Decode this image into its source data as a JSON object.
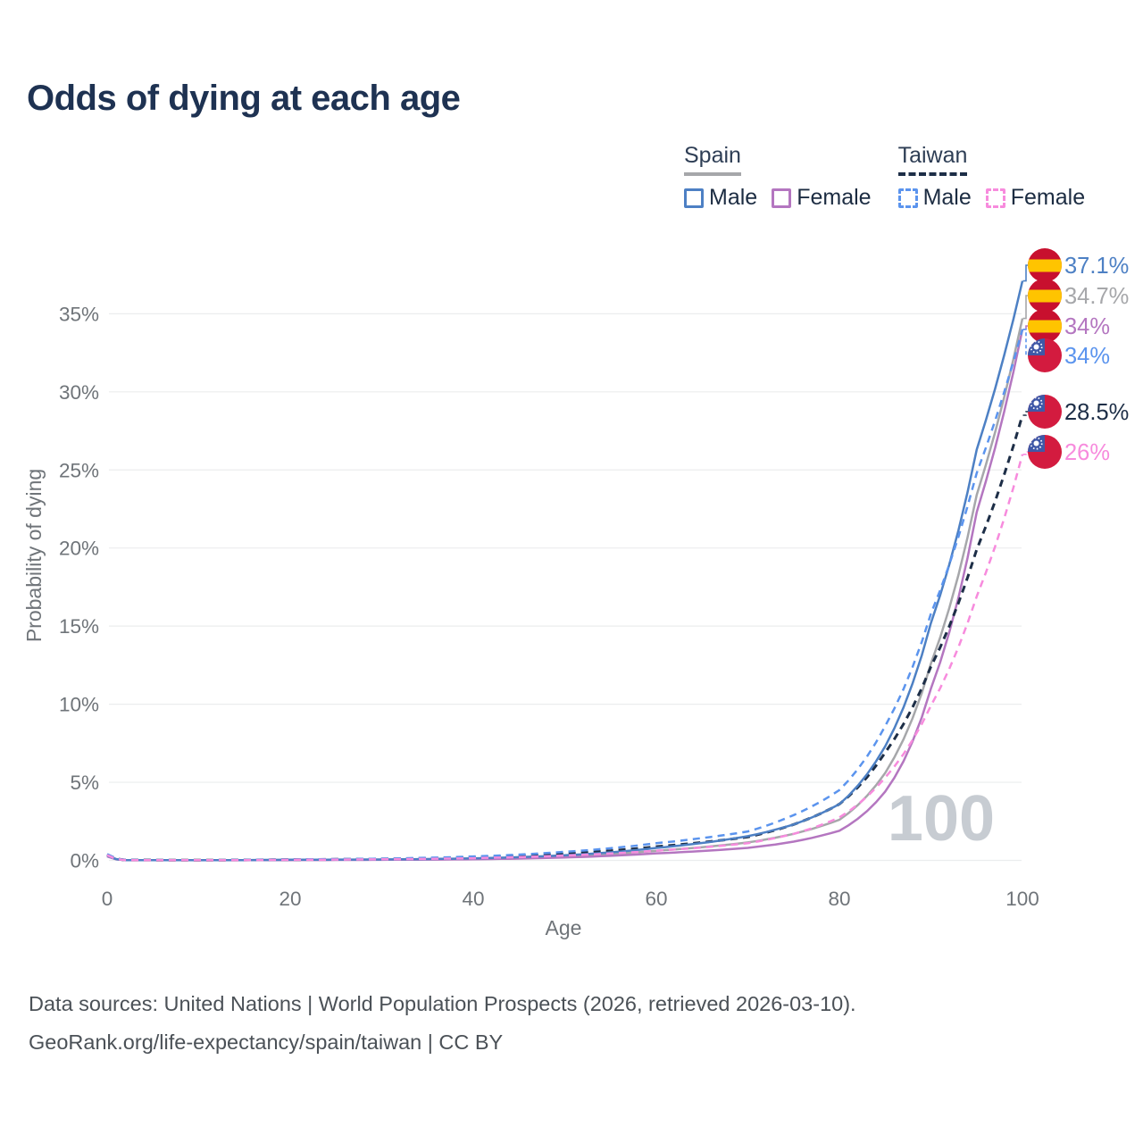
{
  "title": "Odds of dying at each age",
  "legend": {
    "groups": [
      {
        "name": "Spain",
        "line_color": "#a6a7aa",
        "line_style": "solid",
        "items": [
          {
            "label": "Male",
            "color": "#4d80c4",
            "style": "solid"
          },
          {
            "label": "Female",
            "color": "#b476c0",
            "style": "solid"
          }
        ]
      },
      {
        "name": "Taiwan",
        "line_color": "#1d2e47",
        "line_style": "dashed",
        "items": [
          {
            "label": "Male",
            "color": "#5b94ee",
            "style": "dashed"
          },
          {
            "label": "Female",
            "color": "#f78bdd",
            "style": "dashed"
          }
        ]
      }
    ]
  },
  "chart_data": {
    "type": "line",
    "title": "Odds of dying at each age",
    "xlabel": "Age",
    "ylabel": "Probability of dying",
    "unit": "percent",
    "xlim": [
      0,
      100
    ],
    "ylim_pct": [
      0,
      37.5
    ],
    "xticks": [
      "0",
      "20",
      "40",
      "60",
      "80",
      "100"
    ],
    "yticks": [
      "0%",
      "5%",
      "10%",
      "15%",
      "20%",
      "25%",
      "30%",
      "35%"
    ],
    "grid": "horizontal",
    "legend_position": "top-right",
    "watermark": "100",
    "series": [
      {
        "id": "spain-male",
        "name": "Spain Male",
        "country": "Spain",
        "sex": "Male",
        "color": "#4d80c4",
        "dash": "solid",
        "flag": "spain",
        "end_label": "37.1%",
        "ages": [
          0,
          2,
          10,
          20,
          30,
          40,
          50,
          60,
          70,
          75,
          80,
          85,
          90,
          95,
          100
        ],
        "values": [
          0.3,
          0.02,
          0.01,
          0.04,
          0.06,
          0.13,
          0.33,
          0.8,
          1.55,
          2.3,
          3.6,
          7.3,
          15.2,
          26.3,
          37.1
        ]
      },
      {
        "id": "spain-all",
        "name": "Spain",
        "country": "Spain",
        "sex": "Both",
        "color": "#a6a7aa",
        "dash": "solid",
        "flag": "spain",
        "end_label": "34.7%",
        "ages": [
          0,
          2,
          10,
          20,
          30,
          40,
          50,
          60,
          70,
          75,
          80,
          85,
          90,
          95,
          100
        ],
        "values": [
          0.27,
          0.018,
          0.009,
          0.03,
          0.05,
          0.1,
          0.26,
          0.62,
          1.15,
          1.7,
          2.6,
          5.6,
          12.6,
          23.4,
          34.7
        ]
      },
      {
        "id": "spain-female",
        "name": "Spain Female",
        "country": "Spain",
        "sex": "Female",
        "color": "#b476c0",
        "dash": "solid",
        "flag": "spain",
        "end_label": "34%",
        "ages": [
          0,
          2,
          10,
          20,
          30,
          40,
          50,
          60,
          70,
          75,
          80,
          85,
          90,
          95,
          100
        ],
        "values": [
          0.25,
          0.015,
          0.008,
          0.02,
          0.035,
          0.07,
          0.19,
          0.45,
          0.8,
          1.2,
          1.9,
          4.4,
          11.0,
          22.3,
          34.0
        ]
      },
      {
        "id": "taiwan-male",
        "name": "Taiwan Male",
        "country": "Taiwan",
        "sex": "Male",
        "color": "#5b94ee",
        "dash": "dashed",
        "flag": "taiwan",
        "end_label": "34%",
        "ages": [
          0,
          2,
          10,
          20,
          30,
          40,
          50,
          60,
          70,
          75,
          80,
          85,
          90,
          95,
          100
        ],
        "values": [
          0.4,
          0.03,
          0.015,
          0.06,
          0.11,
          0.25,
          0.55,
          1.1,
          1.85,
          2.9,
          4.5,
          8.6,
          15.8,
          24.8,
          34.0
        ]
      },
      {
        "id": "taiwan-all",
        "name": "Taiwan",
        "country": "Taiwan",
        "sex": "Both",
        "color": "#1d2e47",
        "dash": "dashed",
        "flag": "taiwan",
        "end_label": "28.5%",
        "ages": [
          0,
          2,
          10,
          20,
          30,
          40,
          50,
          60,
          70,
          75,
          80,
          85,
          90,
          95,
          100
        ],
        "values": [
          0.37,
          0.025,
          0.012,
          0.05,
          0.09,
          0.19,
          0.43,
          0.88,
          1.5,
          2.3,
          3.6,
          6.9,
          12.4,
          19.9,
          28.5
        ]
      },
      {
        "id": "taiwan-female",
        "name": "Taiwan Female",
        "country": "Taiwan",
        "sex": "Female",
        "color": "#f78bdd",
        "dash": "dashed",
        "flag": "taiwan",
        "end_label": "26%",
        "ages": [
          0,
          2,
          10,
          20,
          30,
          40,
          50,
          60,
          70,
          75,
          80,
          85,
          90,
          95,
          100
        ],
        "values": [
          0.33,
          0.02,
          0.01,
          0.035,
          0.07,
          0.14,
          0.31,
          0.62,
          1.1,
          1.7,
          2.75,
          5.3,
          9.9,
          16.9,
          26.0
        ]
      }
    ]
  },
  "footer": {
    "line1": "Data sources: United Nations | World Population Prospects (2026, retrieved 2026-03-10).",
    "line2": "GeoRank.org/life-expectancy/spain/taiwan | CC BY"
  },
  "colors": {
    "title": "#1e3252",
    "axis_text": "#6f7479",
    "grid": "#ebedee",
    "watermark": "#c7ccd2",
    "footer_text": "#4b5157",
    "background": "#ffffff",
    "spain_flag_red": "#c8102e",
    "spain_flag_yellow": "#ffc400",
    "taiwan_flag_red": "#d31b3f",
    "taiwan_flag_blue": "#3f58a7"
  }
}
